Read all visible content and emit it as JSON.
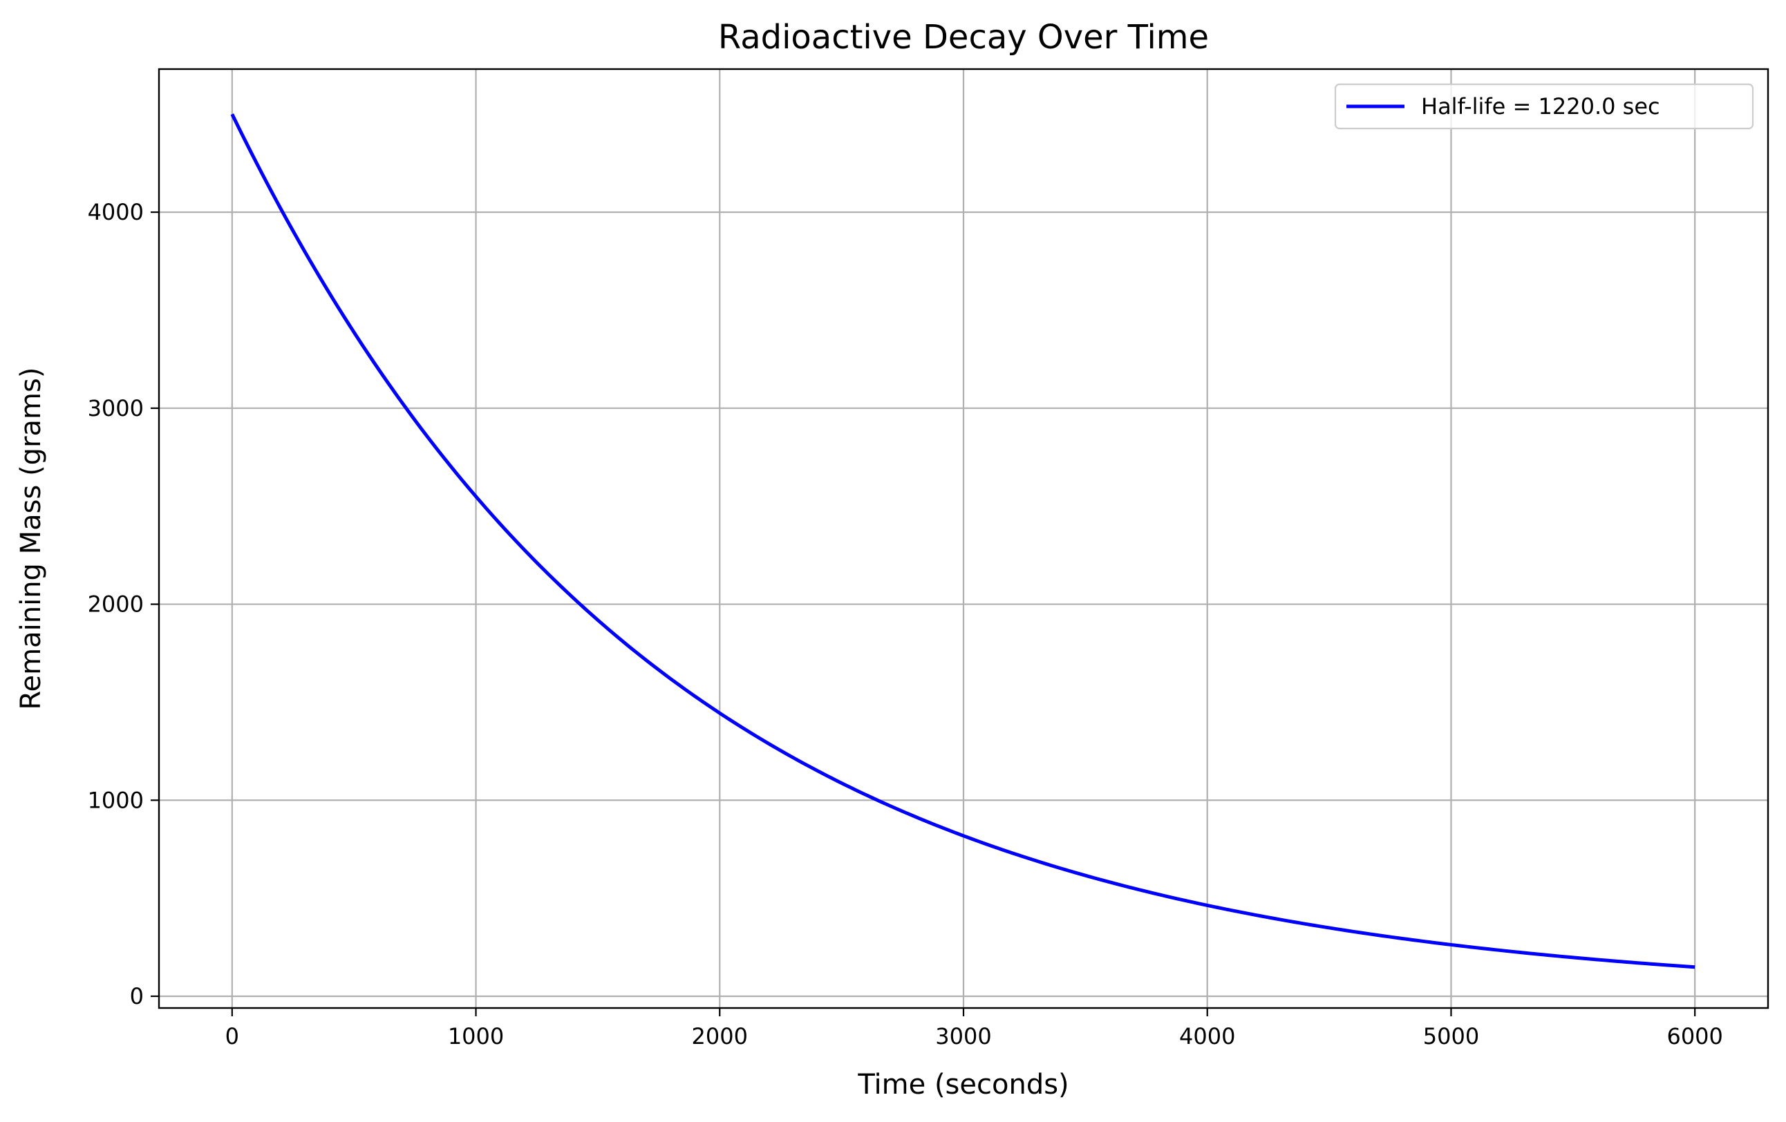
{
  "chart_data": {
    "type": "line",
    "title": "Radioactive Decay Over Time",
    "xlabel": "Time (seconds)",
    "ylabel": "Remaining Mass (grams)",
    "xlim": [
      -300,
      6300
    ],
    "ylim": [
      -60,
      4730
    ],
    "x_ticks": [
      0,
      1000,
      2000,
      3000,
      4000,
      5000,
      6000
    ],
    "y_ticks": [
      0,
      1000,
      2000,
      3000,
      4000
    ],
    "grid": true,
    "legend_position": "top-right",
    "series": [
      {
        "name": "Half-life = 1220.0 sec",
        "color": "#0000ff",
        "initial_mass": 4500,
        "half_life": 1220.0,
        "x_start": 0,
        "x_end": 6000
      }
    ]
  }
}
